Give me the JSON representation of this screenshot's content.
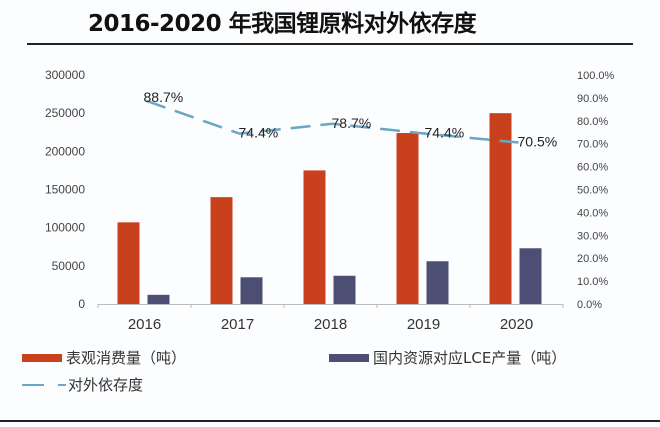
{
  "header": {
    "title": "2016-2020 年我国锂原料对外依存度"
  },
  "colors": {
    "consumption": "#c9401c",
    "domestic": "#4c4f73",
    "dependence": "#6aa7c4",
    "axis": "#bbbbbb",
    "text": "#444444"
  },
  "chart_data": {
    "type": "bar",
    "title": "2016-2020 年我国锂原料对外依存度",
    "categories": [
      "2016",
      "2017",
      "2018",
      "2019",
      "2020"
    ],
    "series": [
      {
        "name": "表观消费量（吨）",
        "type": "bar",
        "axis": "left",
        "values": [
          107000,
          140000,
          175000,
          224000,
          250000
        ]
      },
      {
        "name": "国内资源对应LCE产量（吨）",
        "type": "bar",
        "axis": "left",
        "values": [
          12000,
          35000,
          37000,
          56000,
          73000
        ]
      },
      {
        "name": "对外依存度",
        "type": "line",
        "style": "dashed",
        "axis": "right",
        "values": [
          88.7,
          74.4,
          78.7,
          74.4,
          70.5
        ]
      }
    ],
    "data_labels": [
      "88.7%",
      "74.4%",
      "78.7%",
      "74.4%",
      "70.5%"
    ],
    "y_left": {
      "range": [
        0,
        300000
      ],
      "ticks": [
        "0",
        "50000",
        "100000",
        "150000",
        "200000",
        "250000",
        "300000"
      ]
    },
    "y_right": {
      "range": [
        0,
        100
      ],
      "ticks": [
        "0.0%",
        "10.0%",
        "20.0%",
        "30.0%",
        "40.0%",
        "50.0%",
        "60.0%",
        "70.0%",
        "80.0%",
        "90.0%",
        "100.0%"
      ]
    },
    "xlabel": "",
    "ylabel": "",
    "grid": false,
    "legend_position": "bottom"
  },
  "legend": {
    "consumption": "表观消费量（吨）",
    "domestic": "国内资源对应LCE产量（吨）",
    "dependence": "对外依存度"
  }
}
